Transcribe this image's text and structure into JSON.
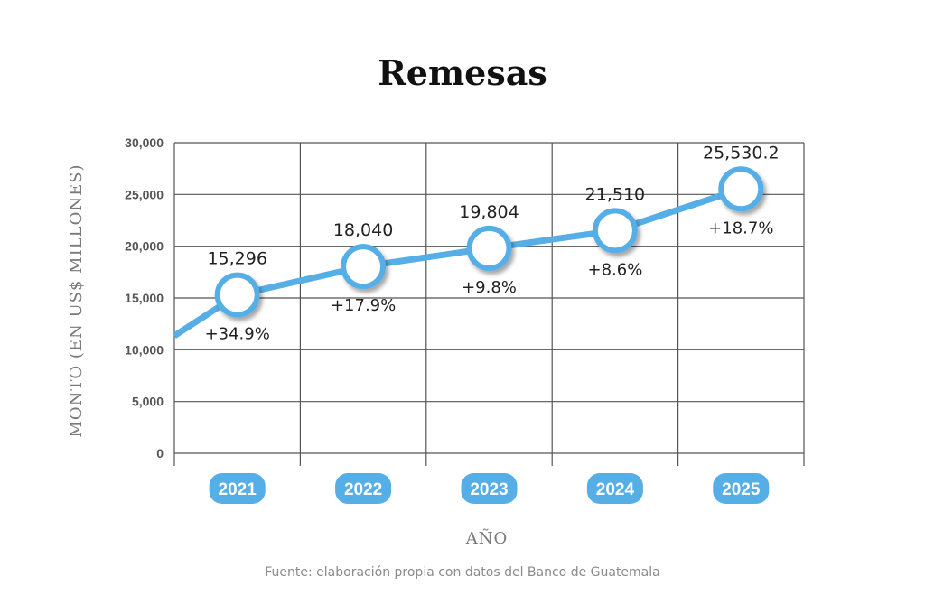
{
  "chart_data": {
    "type": "line",
    "title": "Remesas",
    "xlabel": "AÑO",
    "ylabel": "MONTO (EN US$ MILLONES)",
    "categories": [
      "2021",
      "2022",
      "2023",
      "2024",
      "2025"
    ],
    "series": [
      {
        "values": [
          15296,
          18040,
          19804,
          21510,
          25530.2
        ],
        "value_labels": [
          "15,296",
          "18,040",
          "19,804",
          "21,510",
          "25,530.2"
        ],
        "growth_labels": [
          "+34.9%",
          "+17.9%",
          "+9.8%",
          "+8.6%",
          "+18.7%"
        ]
      }
    ],
    "line_start_value": 11340,
    "ylim": [
      0,
      30000
    ],
    "yticks": [
      0,
      5000,
      10000,
      15000,
      20000,
      25000,
      30000
    ],
    "ytick_labels": [
      "0",
      "5,000",
      "10,000",
      "15,000",
      "20,000",
      "25,000",
      "30,000"
    ],
    "grid": true,
    "colors": {
      "line": "#56aee6",
      "marker_ring": "#56aee6",
      "marker_fill": "#ffffff",
      "badge": "#56aee6",
      "grid": "#555555"
    }
  },
  "source": "Fuente: elaboración propia con datos del Banco de Guatemala"
}
